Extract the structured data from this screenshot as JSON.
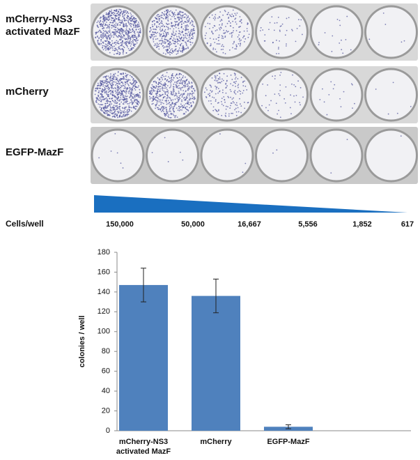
{
  "panel": {
    "rows": [
      "mCherry-NS3\nactivated MazF",
      "mCherry",
      "EGFP-MazF"
    ],
    "axis_label": "Cells/well",
    "dilutions": [
      "150,000",
      "50,000",
      "16,667",
      "5,556",
      "1,852",
      "617"
    ]
  },
  "chart_data": {
    "type": "bar",
    "ylabel": "colonies / well",
    "categories": [
      "mCherry-NS3\nactivated MazF",
      "mCherry",
      "EGFP-MazF"
    ],
    "values": [
      147,
      136,
      4
    ],
    "errors": [
      17,
      17,
      2
    ],
    "color": "#4f81bd",
    "ylim": [
      0,
      180
    ],
    "yticks": [
      0,
      20,
      40,
      60,
      80,
      100,
      120,
      140,
      160,
      180
    ],
    "grid": false
  }
}
